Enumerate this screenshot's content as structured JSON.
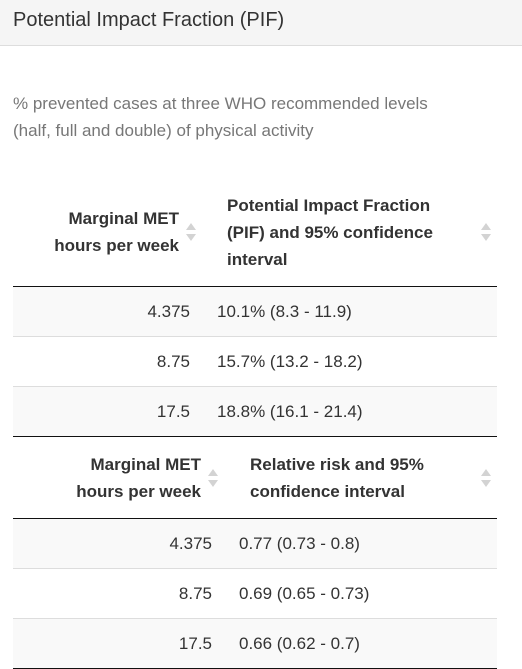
{
  "panel": {
    "title": "Potential Impact Fraction (PIF)",
    "description_line1": "% prevented cases at three WHO recommended levels",
    "description_line2": "(half, full and double) of physical activity"
  },
  "pif_table": {
    "headers": [
      [
        "Marginal MET",
        "hours per week"
      ],
      [
        "Potential Impact Fraction",
        "(PIF) and 95% confidence",
        "interval"
      ]
    ],
    "rows": [
      [
        "4.375",
        "10.1% (8.3 - 11.9)"
      ],
      [
        "8.75",
        "15.7% (13.2 - 18.2)"
      ],
      [
        "17.5",
        "18.8% (16.1 - 21.4)"
      ]
    ]
  },
  "rr_table": {
    "headers": [
      [
        "Marginal MET",
        "hours per week"
      ],
      [
        "Relative risk and 95%",
        "confidence interval"
      ]
    ],
    "rows": [
      [
        "4.375",
        "0.77 (0.73 - 0.8)"
      ],
      [
        "8.75",
        "0.69 (0.65 - 0.73)"
      ],
      [
        "17.5",
        "0.66 (0.62 - 0.7)"
      ]
    ]
  },
  "icons": {
    "sort": "sort-both-icon"
  }
}
